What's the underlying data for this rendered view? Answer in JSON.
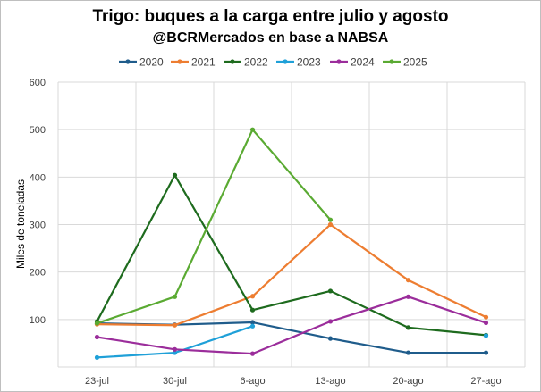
{
  "chart_data": {
    "type": "line",
    "title": "Trigo: buques a la carga entre julio y agosto",
    "subtitle": "@BCRMercados en base a NABSA",
    "xlabel": "",
    "ylabel": "Miles de toneladas",
    "ylim": [
      0,
      600
    ],
    "yticks": [
      0,
      100,
      200,
      300,
      400,
      500,
      600
    ],
    "ytick_labels": [
      "",
      "100",
      "200",
      "300",
      "400",
      "500",
      "600"
    ],
    "grid": true,
    "legend_position": "top",
    "categories": [
      "23-jul",
      "30-jul",
      "6-ago",
      "13-ago",
      "20-ago",
      "27-ago"
    ],
    "series": [
      {
        "name": "2020",
        "color": "#1f5c8b",
        "values": [
          92,
          89,
          94,
          60,
          30,
          30
        ]
      },
      {
        "name": "2021",
        "color": "#ed7d31",
        "values": [
          90,
          88,
          149,
          300,
          183,
          105
        ]
      },
      {
        "name": "2022",
        "color": "#1e6b1e",
        "values": [
          96,
          404,
          120,
          160,
          83,
          67
        ]
      },
      {
        "name": "2023",
        "color": "#1fa0d8",
        "values": [
          20,
          30,
          86,
          null,
          null,
          66
        ]
      },
      {
        "name": "2024",
        "color": "#9b2d9b",
        "values": [
          63,
          37,
          28,
          96,
          148,
          93
        ]
      },
      {
        "name": "2025",
        "color": "#5aaa32",
        "values": [
          92,
          148,
          500,
          310,
          null,
          null
        ]
      }
    ]
  }
}
